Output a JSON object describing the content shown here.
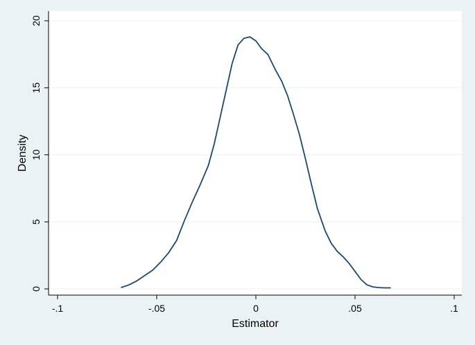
{
  "chart_data": {
    "type": "line",
    "title": "",
    "xlabel": "Estimator",
    "ylabel": "Density",
    "xlim": [
      -0.1,
      0.1
    ],
    "ylim": [
      0,
      20
    ],
    "x_ticks": [
      -0.1,
      -0.05,
      0,
      0.05,
      0.1
    ],
    "x_tick_labels": [
      "-.1",
      "-.05",
      "0",
      ".05",
      ".1"
    ],
    "y_ticks": [
      0,
      5,
      10,
      15,
      20
    ],
    "y_tick_labels": [
      "0",
      "5",
      "10",
      "15",
      "20"
    ],
    "grid": true,
    "legend": "none",
    "colors": {
      "background": "#eaf2f3",
      "plot_area": "#ffffff",
      "series": "#1a476f"
    },
    "series": [
      {
        "x": [
          -0.068,
          -0.064,
          -0.06,
          -0.056,
          -0.052,
          -0.048,
          -0.044,
          -0.04,
          -0.036,
          -0.032,
          -0.028,
          -0.024,
          -0.021,
          -0.018,
          -0.015,
          -0.012,
          -0.009,
          -0.006,
          -0.003,
          0.0,
          0.003,
          0.006,
          0.01,
          0.013,
          0.016,
          0.019,
          0.022,
          0.025,
          0.028,
          0.031,
          0.035,
          0.038,
          0.041,
          0.044,
          0.047,
          0.05,
          0.053,
          0.056,
          0.059,
          0.062,
          0.065,
          0.068
        ],
        "y": [
          0.1,
          0.3,
          0.6,
          1.0,
          1.4,
          2.0,
          2.7,
          3.6,
          5.1,
          6.5,
          7.8,
          9.2,
          10.8,
          12.8,
          14.8,
          16.8,
          18.2,
          18.7,
          18.8,
          18.5,
          17.9,
          17.5,
          16.3,
          15.5,
          14.4,
          13.0,
          11.5,
          9.7,
          7.8,
          6.0,
          4.3,
          3.4,
          2.8,
          2.4,
          1.9,
          1.3,
          0.7,
          0.3,
          0.15,
          0.1,
          0.08,
          0.08
        ]
      }
    ]
  }
}
